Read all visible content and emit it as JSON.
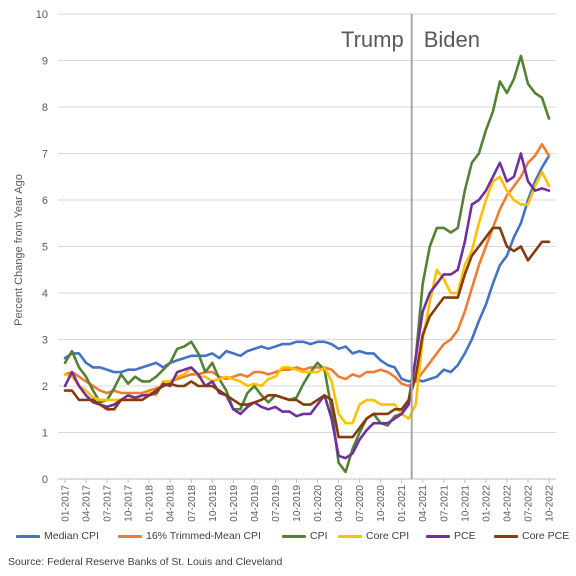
{
  "chart_data": {
    "type": "line",
    "title": "",
    "xlabel": "",
    "ylabel": "Percent Change from Year Ago",
    "ylim": [
      0,
      10
    ],
    "yticks": [
      "0",
      "1",
      "2",
      "3",
      "4",
      "5",
      "6",
      "7",
      "8",
      "9",
      "10"
    ],
    "x": [
      "01-2017",
      "02-2017",
      "03-2017",
      "04-2017",
      "05-2017",
      "06-2017",
      "07-2017",
      "08-2017",
      "09-2017",
      "10-2017",
      "11-2017",
      "12-2017",
      "01-2018",
      "02-2018",
      "03-2018",
      "04-2018",
      "05-2018",
      "06-2018",
      "07-2018",
      "08-2018",
      "09-2018",
      "10-2018",
      "11-2018",
      "12-2018",
      "01-2019",
      "02-2019",
      "03-2019",
      "04-2019",
      "05-2019",
      "06-2019",
      "07-2019",
      "08-2019",
      "09-2019",
      "10-2019",
      "11-2019",
      "12-2019",
      "01-2020",
      "02-2020",
      "03-2020",
      "04-2020",
      "05-2020",
      "06-2020",
      "07-2020",
      "08-2020",
      "09-2020",
      "10-2020",
      "11-2020",
      "12-2020",
      "01-2021",
      "02-2021",
      "03-2021",
      "04-2021",
      "05-2021",
      "06-2021",
      "07-2021",
      "08-2021",
      "09-2021",
      "10-2021",
      "11-2021",
      "12-2021",
      "01-2022",
      "02-2022",
      "03-2022",
      "04-2022",
      "05-2022",
      "06-2022",
      "07-2022",
      "08-2022",
      "09-2022",
      "10-2022"
    ],
    "xtick_labels": [
      "01-2017",
      "04-2017",
      "07-2017",
      "10-2017",
      "01-2018",
      "04-2018",
      "07-2018",
      "10-2018",
      "01-2019",
      "04-2019",
      "07-2019",
      "10-2019",
      "01-2020",
      "04-2020",
      "07-2020",
      "10-2020",
      "01-2021",
      "04-2021",
      "07-2021",
      "10-2021",
      "01-2022",
      "04-2022",
      "07-2022",
      "10-2022"
    ],
    "annotations": [
      {
        "text": "Trump",
        "side": "left"
      },
      {
        "text": "Biden",
        "side": "right"
      }
    ],
    "divider_date": "02-2021",
    "grid": true,
    "legend_placement": "bottom",
    "series": [
      {
        "name": "Median CPI",
        "color": "#4472C4",
        "values": [
          2.6,
          2.7,
          2.7,
          2.5,
          2.4,
          2.4,
          2.35,
          2.3,
          2.3,
          2.35,
          2.35,
          2.4,
          2.45,
          2.5,
          2.4,
          2.5,
          2.55,
          2.6,
          2.65,
          2.65,
          2.65,
          2.7,
          2.6,
          2.75,
          2.7,
          2.65,
          2.75,
          2.8,
          2.85,
          2.8,
          2.85,
          2.9,
          2.9,
          2.95,
          2.95,
          2.9,
          2.95,
          2.95,
          2.9,
          2.8,
          2.85,
          2.7,
          2.75,
          2.7,
          2.7,
          2.55,
          2.45,
          2.4,
          2.15,
          2.1,
          2.15,
          2.1,
          2.15,
          2.2,
          2.35,
          2.3,
          2.45,
          2.7,
          3.0,
          3.4,
          3.75,
          4.2,
          4.6,
          4.8,
          5.2,
          5.5,
          6.0,
          6.4,
          6.7,
          6.95
        ]
      },
      {
        "name": "16% Trimmed-Mean CPI",
        "color": "#ED7D31",
        "values": [
          2.25,
          2.3,
          2.2,
          2.1,
          2.0,
          1.9,
          1.85,
          1.9,
          1.85,
          1.85,
          1.85,
          1.85,
          1.9,
          1.95,
          2.0,
          2.1,
          2.15,
          2.2,
          2.25,
          2.25,
          2.3,
          2.3,
          2.2,
          2.15,
          2.2,
          2.25,
          2.2,
          2.3,
          2.3,
          2.25,
          2.3,
          2.35,
          2.35,
          2.4,
          2.35,
          2.4,
          2.4,
          2.4,
          2.35,
          2.2,
          2.15,
          2.25,
          2.2,
          2.3,
          2.3,
          2.35,
          2.3,
          2.2,
          2.05,
          2.0,
          2.1,
          2.3,
          2.5,
          2.7,
          2.9,
          3.0,
          3.2,
          3.6,
          4.1,
          4.6,
          5.0,
          5.4,
          5.8,
          6.1,
          6.3,
          6.5,
          6.8,
          6.95,
          7.2,
          6.95
        ]
      },
      {
        "name": "CPI",
        "color": "#548235",
        "values": [
          2.5,
          2.75,
          2.4,
          2.2,
          1.9,
          1.65,
          1.7,
          1.95,
          2.25,
          2.05,
          2.2,
          2.1,
          2.1,
          2.2,
          2.35,
          2.5,
          2.8,
          2.85,
          2.95,
          2.7,
          2.3,
          2.5,
          2.15,
          1.9,
          1.5,
          1.5,
          1.85,
          2.0,
          1.8,
          1.65,
          1.8,
          1.75,
          1.7,
          1.75,
          2.05,
          2.3,
          2.5,
          2.35,
          1.5,
          0.35,
          0.15,
          0.65,
          1.0,
          1.3,
          1.4,
          1.2,
          1.15,
          1.35,
          1.4,
          1.7,
          2.6,
          4.2,
          5.0,
          5.4,
          5.4,
          5.3,
          5.4,
          6.2,
          6.8,
          7.0,
          7.5,
          7.9,
          8.55,
          8.3,
          8.6,
          9.1,
          8.5,
          8.3,
          8.2,
          7.75
        ]
      },
      {
        "name": "Core CPI",
        "color": "#FFC000",
        "values": [
          2.25,
          2.2,
          2.0,
          1.9,
          1.75,
          1.7,
          1.7,
          1.7,
          1.7,
          1.8,
          1.7,
          1.8,
          1.85,
          1.8,
          2.1,
          2.1,
          2.2,
          2.25,
          2.4,
          2.2,
          2.2,
          2.1,
          2.15,
          2.2,
          2.15,
          2.1,
          2.0,
          2.05,
          2.0,
          2.15,
          2.2,
          2.4,
          2.4,
          2.35,
          2.3,
          2.3,
          2.3,
          2.4,
          2.1,
          1.4,
          1.2,
          1.2,
          1.6,
          1.7,
          1.7,
          1.6,
          1.6,
          1.6,
          1.4,
          1.3,
          1.6,
          3.0,
          3.8,
          4.5,
          4.3,
          4.0,
          4.0,
          4.6,
          4.9,
          5.5,
          6.0,
          6.4,
          6.5,
          6.2,
          6.0,
          5.9,
          5.9,
          6.3,
          6.6,
          6.3
        ]
      },
      {
        "name": "PCE",
        "color": "#7030A0",
        "values": [
          2.0,
          2.3,
          2.0,
          1.8,
          1.65,
          1.6,
          1.55,
          1.6,
          1.7,
          1.8,
          1.75,
          1.8,
          1.8,
          1.85,
          2.05,
          2.0,
          2.3,
          2.35,
          2.4,
          2.25,
          2.0,
          2.1,
          1.85,
          1.8,
          1.5,
          1.4,
          1.55,
          1.65,
          1.55,
          1.5,
          1.55,
          1.45,
          1.45,
          1.35,
          1.4,
          1.4,
          1.6,
          1.8,
          1.3,
          0.5,
          0.45,
          0.55,
          0.85,
          1.05,
          1.2,
          1.2,
          1.2,
          1.3,
          1.4,
          1.6,
          2.6,
          3.6,
          4.0,
          4.2,
          4.4,
          4.4,
          4.5,
          5.1,
          5.9,
          6.0,
          6.2,
          6.5,
          6.8,
          6.4,
          6.5,
          7.0,
          6.4,
          6.2,
          6.25,
          6.2
        ]
      },
      {
        "name": "Core PCE",
        "color": "#843C0C",
        "values": [
          1.9,
          1.9,
          1.7,
          1.7,
          1.7,
          1.6,
          1.5,
          1.5,
          1.7,
          1.7,
          1.7,
          1.7,
          1.8,
          1.9,
          2.0,
          2.05,
          2.0,
          2.0,
          2.1,
          2.0,
          2.0,
          2.0,
          1.9,
          1.8,
          1.7,
          1.6,
          1.6,
          1.65,
          1.7,
          1.8,
          1.8,
          1.75,
          1.7,
          1.7,
          1.6,
          1.6,
          1.7,
          1.8,
          1.7,
          0.9,
          0.9,
          0.9,
          1.1,
          1.3,
          1.4,
          1.4,
          1.4,
          1.5,
          1.5,
          1.7,
          2.2,
          3.1,
          3.5,
          3.7,
          3.9,
          3.9,
          3.9,
          4.4,
          4.8,
          5.0,
          5.2,
          5.4,
          5.4,
          5.0,
          4.9,
          5.0,
          4.7,
          4.9,
          5.1,
          5.1
        ]
      }
    ]
  },
  "source_note": "Source: Federal Reserve Banks of St. Louis and Cleveland"
}
